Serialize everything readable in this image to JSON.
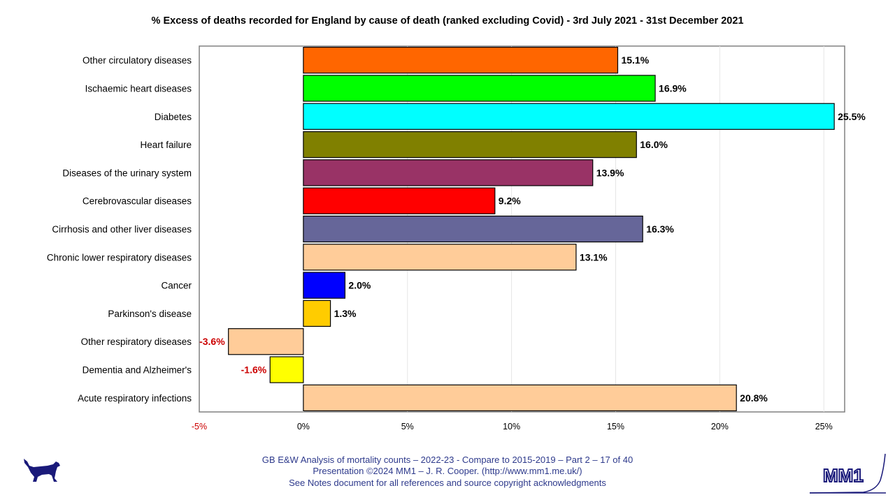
{
  "chart_data": {
    "type": "bar",
    "orientation": "horizontal",
    "title": "% Excess of deaths recorded for England by cause of death (ranked excluding Covid) - 3rd July 2021 - 31st December 2021",
    "categories": [
      "Other circulatory diseases",
      "Ischaemic heart diseases",
      "Diabetes",
      "Heart failure",
      "Diseases of the urinary system",
      "Cerebrovascular diseases",
      "Cirrhosis and other liver diseases",
      "Chronic lower respiratory diseases",
      "Cancer",
      "Parkinson's disease",
      "Other respiratory diseases",
      "Dementia and Alzheimer's",
      "Acute respiratory infections"
    ],
    "values": [
      15.1,
      16.9,
      25.5,
      16.0,
      13.9,
      9.2,
      16.3,
      13.1,
      2.0,
      1.3,
      -3.6,
      -1.6,
      20.8
    ],
    "value_labels": [
      "15.1%",
      "16.9%",
      "25.5%",
      "16.0%",
      "13.9%",
      "9.2%",
      "16.3%",
      "13.1%",
      "2.0%",
      "1.3%",
      "-3.6%",
      "-1.6%",
      "20.8%"
    ],
    "colors": [
      "#ff6600",
      "#00ff00",
      "#00ffff",
      "#808000",
      "#993366",
      "#ff0000",
      "#666699",
      "#ffcc99",
      "#0000ff",
      "#ffcc00",
      "#ffcc99",
      "#ffff00",
      "#ffcc99"
    ],
    "xlim": [
      -5,
      26
    ],
    "xticks": [
      -5,
      0,
      5,
      10,
      15,
      20,
      25
    ],
    "xtick_labels": [
      "-5%",
      "0%",
      "5%",
      "10%",
      "15%",
      "20%",
      "25%"
    ],
    "negative_label_color": "#cc0000",
    "negative_tick_color": "#cc0000",
    "grid": "vertical",
    "xlabel": "",
    "ylabel": ""
  },
  "footer": {
    "line1": "GB E&W Analysis of mortality counts – 2022-23 - Compare to 2015-2019 – Part 2 – 17 of 40",
    "line2": "Presentation ©2024 MM1 – J. R. Cooper. (http://www.mm1.me.uk/)",
    "line3": "See Notes document for all references and source copyright acknowledgments"
  },
  "logo": {
    "text": "MM1"
  }
}
